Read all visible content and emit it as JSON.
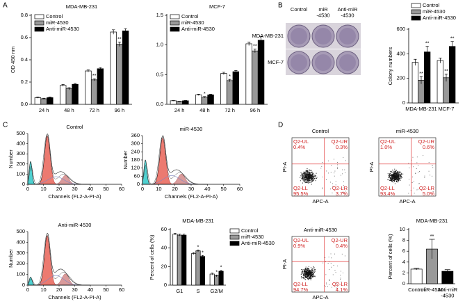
{
  "panels": [
    "A",
    "B",
    "C",
    "D"
  ],
  "chart_data": [
    {
      "type": "bar",
      "title": "MDA-MB-231",
      "ylabel": "OD 450 nm",
      "categories": [
        "24 h",
        "48 h",
        "72 h",
        "96 h"
      ],
      "series": [
        {
          "name": "Control",
          "color": "#ffffff",
          "values": [
            0.06,
            0.17,
            0.3,
            0.65
          ],
          "errors": [
            0.005,
            0.008,
            0.01,
            0.02
          ]
        },
        {
          "name": "miR-4530",
          "color": "#999999",
          "values": [
            0.05,
            0.14,
            0.22,
            0.54
          ],
          "errors": [
            0.005,
            0.01,
            0.01,
            0.02
          ],
          "significance": [
            null,
            null,
            "**",
            "**"
          ]
        },
        {
          "name": "Anti-miR-4530",
          "color": "#000000",
          "values": [
            0.06,
            0.18,
            0.32,
            0.66
          ],
          "errors": [
            0.005,
            0.008,
            0.01,
            0.02
          ]
        }
      ],
      "ylim": [
        0,
        0.8
      ],
      "yticks": [
        {
          "value": 0,
          "label": "0.0"
        },
        0.2,
        0.4,
        0.6,
        0.8
      ],
      "legend": "upper left"
    },
    {
      "type": "bar",
      "title": "MCF-7",
      "categories": [
        "24 h",
        "48 h",
        "72 h",
        "96 h"
      ],
      "series": [
        {
          "name": "Control",
          "color": "#ffffff",
          "values": [
            0.06,
            0.16,
            0.52,
            1.02
          ],
          "errors": [
            0.005,
            0.01,
            0.02,
            0.03
          ]
        },
        {
          "name": "miR-4530",
          "color": "#999999",
          "values": [
            0.05,
            0.12,
            0.4,
            0.9
          ],
          "errors": [
            0.005,
            0.01,
            0.02,
            0.03
          ],
          "significance": [
            null,
            "*",
            "*",
            "**"
          ]
        },
        {
          "name": "Anti-miR-4530",
          "color": "#000000",
          "values": [
            0.06,
            0.16,
            0.55,
            1.08
          ],
          "errors": [
            0.005,
            0.01,
            0.02,
            0.06
          ]
        }
      ],
      "ylim": [
        0,
        1.5
      ],
      "yticks": [
        {
          "value": 0,
          "label": "0.0"
        },
        0.5,
        {
          "value": 1,
          "label": "1.0"
        },
        1.5
      ],
      "legend": "upper left"
    },
    {
      "type": "bar",
      "ylabel": "Colony numbers",
      "categories": [
        "MDA-MB-231",
        "MCF-7"
      ],
      "series": [
        {
          "name": "Control",
          "color": "#ffffff",
          "values": [
            330,
            345
          ],
          "errors": [
            25,
            20
          ]
        },
        {
          "name": "miR-4530",
          "color": "#999999",
          "values": [
            185,
            205
          ],
          "errors": [
            30,
            30
          ],
          "significance": [
            "**",
            "**"
          ]
        },
        {
          "name": "Anti-miR-4530",
          "color": "#000000",
          "values": [
            415,
            460
          ],
          "errors": [
            45,
            40
          ],
          "significance": [
            "**",
            "**"
          ]
        }
      ],
      "ylim": [
        0,
        600
      ],
      "yticks": [
        0,
        200,
        400,
        600
      ],
      "legend": "upper right"
    },
    {
      "type": "bar",
      "title": "MDA-MB-231",
      "ylabel": "Percent of cells (%)",
      "categories": [
        "G1",
        "S",
        "G2/M"
      ],
      "series": [
        {
          "name": "Control",
          "color": "#ffffff",
          "values": [
            55,
            34,
            12
          ],
          "errors": [
            1,
            1,
            1
          ]
        },
        {
          "name": "miR-4530",
          "color": "#999999",
          "values": [
            54,
            37,
            10
          ],
          "errors": [
            1,
            1,
            1
          ],
          "significance": [
            null,
            "*",
            "*"
          ]
        },
        {
          "name": "Anti-miR-4530",
          "color": "#000000",
          "values": [
            54,
            31,
            15
          ],
          "errors": [
            1,
            1,
            1
          ],
          "significance": [
            null,
            "*",
            "*"
          ]
        }
      ],
      "ylim": [
        0,
        60
      ],
      "yticks": [
        0,
        20,
        40,
        60
      ],
      "legend": "right"
    },
    {
      "type": "bar",
      "title": "MDA-MB-231",
      "ylabel": "Percent of cells (%)",
      "categories": [
        "Control",
        "miR-4530",
        "Anti-miR\n-4530"
      ],
      "values": [
        2.7,
        6.4,
        2.3
      ],
      "errors": [
        0.15,
        1.8,
        0.3
      ],
      "colors": [
        "#ffffff",
        "#999999",
        "#000000"
      ],
      "significance": [
        null,
        "**",
        null
      ],
      "ylim": [
        0,
        10
      ],
      "yticks": [
        0,
        2,
        4,
        6,
        8,
        10
      ]
    }
  ],
  "colony_photos": {
    "columns": [
      "Control",
      "miR\n-4530",
      "Anti-miR\n-4530"
    ],
    "rows": [
      "MDA-MB-231",
      "MCF-7"
    ]
  },
  "flow_histograms": [
    {
      "title": "Control",
      "xlabel": "Channels (FL2-A-PI-A)",
      "ylabel": "Number",
      "xticks": [
        0,
        10,
        20,
        30,
        40,
        50,
        60
      ],
      "yticks": [
        0,
        100,
        200,
        300,
        400,
        500
      ]
    },
    {
      "title": "miR-4530",
      "xlabel": "Channels (FL2-A-PI-A)",
      "ylabel": "Number",
      "xticks": [
        0,
        10,
        20,
        30,
        40,
        50,
        60
      ],
      "yticks": [
        0,
        60,
        120,
        180,
        240,
        300,
        360
      ]
    },
    {
      "title": "Anti-miR-4530",
      "xlabel": "Channels (FL2-A-PI-A)",
      "ylabel": "Number",
      "xticks": [
        0,
        10,
        20,
        30,
        40,
        50,
        60
      ],
      "yticks": [
        0,
        100,
        200,
        300,
        400,
        500
      ]
    }
  ],
  "flow_scatter": [
    {
      "title": "Control",
      "xlabel": "APC-A",
      "ylabel": "PI-A",
      "quadrants": [
        {
          "name": "Q2-UL",
          "label": "0.4%"
        },
        {
          "name": "Q2-UR",
          "label": "0.3%"
        },
        {
          "name": "Q2-LL",
          "label": "95.5%"
        },
        {
          "name": "Q2-LR",
          "label": "3.7%"
        }
      ]
    },
    {
      "title": "miR-4530",
      "xlabel": "APC-A",
      "ylabel": "PI-A",
      "quadrants": [
        {
          "name": "Q2-UL",
          "label": "1.0%"
        },
        {
          "name": "Q2-UR",
          "label": "0.6%"
        },
        {
          "name": "Q2-LL",
          "label": "93.4%"
        },
        {
          "name": "Q2-LR",
          "label": "5.0%"
        }
      ]
    },
    {
      "title": "Anti-miR-4530",
      "xlabel": "APC-A",
      "ylabel": "PI-A",
      "quadrants": [
        {
          "name": "Q2-UL",
          "label": "0.9%"
        },
        {
          "name": "Q2-UR",
          "label": "0.4%"
        },
        {
          "name": "Q2-LL",
          "label": "94.7%"
        },
        {
          "name": "Q2-LR",
          "label": "4.1%"
        }
      ]
    }
  ]
}
